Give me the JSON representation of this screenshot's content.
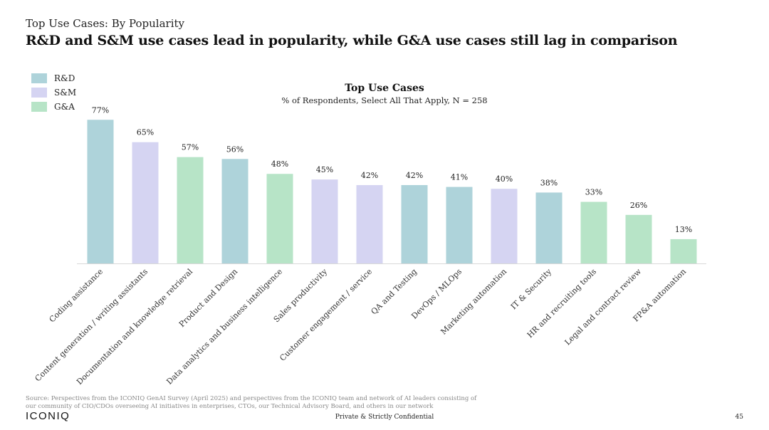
{
  "header": {
    "kicker": "Top Use Cases: By Popularity",
    "headline": "R&D and S&M use cases lead in popularity, while G&A use cases still lag in comparison"
  },
  "legend": [
    {
      "label": "R&D",
      "color": "#aed3da"
    },
    {
      "label": "S&M",
      "color": "#d5d4f2"
    },
    {
      "label": "G&A",
      "color": "#b7e4c7"
    }
  ],
  "chart_data": {
    "type": "bar",
    "title": "Top Use Cases",
    "subtitle": "% of Respondents, Select All That Apply, N = 258",
    "xlabel": "",
    "ylabel": "",
    "ylim": [
      0,
      100
    ],
    "grid": false,
    "legend_position": "top-left",
    "categories": [
      "Coding assistance",
      "Content generation / writing assistants",
      "Documentation and knowledge retrieval",
      "Product and Design",
      "Data analytics and business intelligence",
      "Sales productivity",
      "Customer engagement / service",
      "QA and Testing",
      "DevOps / MLOps",
      "Marketing automation",
      "IT & Security",
      "HR and recruiting tools",
      "Legal and contract review",
      "FP&A automation"
    ],
    "values": [
      77,
      65,
      57,
      56,
      48,
      45,
      42,
      42,
      41,
      40,
      38,
      33,
      26,
      13
    ],
    "labels": [
      "77%",
      "65%",
      "57%",
      "56%",
      "48%",
      "45%",
      "42%",
      "42%",
      "41%",
      "40%",
      "38%",
      "33%",
      "26%",
      "13%"
    ],
    "groups": [
      "R&D",
      "S&M",
      "G&A",
      "R&D",
      "G&A",
      "S&M",
      "S&M",
      "R&D",
      "R&D",
      "S&M",
      "R&D",
      "G&A",
      "G&A",
      "G&A"
    ]
  },
  "footer": {
    "source": "Source: Perspectives from the ICONIQ GenAI Survey (April 2025) and perspectives from the ICONIQ team and network of AI leaders consisting of our community of CIO/CDOs overseeing AI initiatives in enterprises, CTOs, our Technical Advisory Board, and others in our network",
    "logo": "ICONIQ",
    "confidential": "Private & Strictly Confidential",
    "page_number": "45"
  }
}
